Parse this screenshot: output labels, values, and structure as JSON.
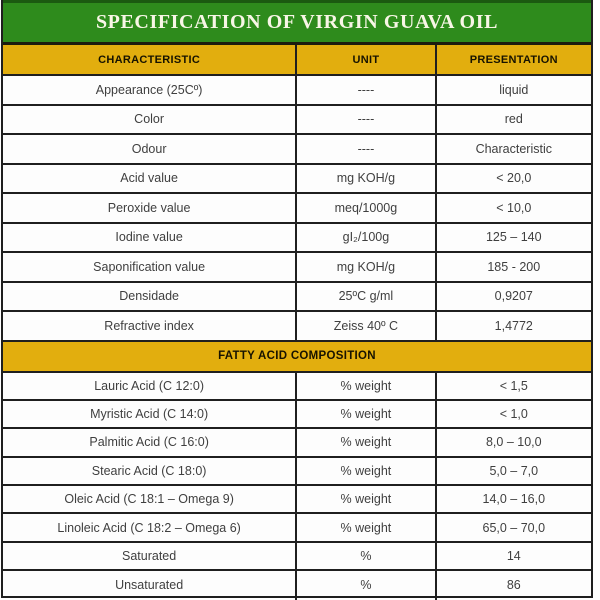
{
  "colors": {
    "green": "#2e8b1c",
    "green_dark": "#1b5a10",
    "gold": "#e2ae0e",
    "border": "#1f1f1f",
    "body_text": "#3f3f3f",
    "header_text": "#171300",
    "title_text": "#f8f6e6"
  },
  "title": "SPECIFICATION OF VIRGIN GUAVA OIL",
  "columns": {
    "characteristic": "CHARACTERISTIC",
    "unit": "UNIT",
    "presentation": "PRESENTATION"
  },
  "general_rows": [
    {
      "characteristic": "Appearance (25Cº)",
      "unit": "----",
      "presentation": "liquid"
    },
    {
      "characteristic": "Color",
      "unit": "----",
      "presentation": "red"
    },
    {
      "characteristic": "Odour",
      "unit": "----",
      "presentation": "Characteristic"
    },
    {
      "characteristic": "Acid value",
      "unit": "mg KOH/g",
      "presentation": "< 20,0"
    },
    {
      "characteristic": "Peroxide value",
      "unit": "meq/1000g",
      "presentation": "< 10,0"
    },
    {
      "characteristic": "Iodine value",
      "unit": "gI₂/100g",
      "presentation": "125 – 140"
    },
    {
      "characteristic": "Saponification value",
      "unit": "mg KOH/g",
      "presentation": "185 - 200"
    },
    {
      "characteristic": "Densidade",
      "unit": "25ºC g/ml",
      "presentation": "0,9207"
    },
    {
      "characteristic": "Refractive index",
      "unit": "Zeiss 40º C",
      "presentation": "1,4772"
    }
  ],
  "section_header": "FATTY ACID COMPOSITION",
  "fatty_rows": [
    {
      "characteristic": "Lauric Acid (C 12:0)",
      "unit": "% weight",
      "presentation": "< 1,5"
    },
    {
      "characteristic": "Myristic Acid (C 14:0)",
      "unit": "% weight",
      "presentation": "< 1,0"
    },
    {
      "characteristic": "Palmitic Acid (C 16:0)",
      "unit": "% weight",
      "presentation": "8,0 – 10,0"
    },
    {
      "characteristic": "Stearic Acid (C 18:0)",
      "unit": "% weight",
      "presentation": "5,0 – 7,0"
    },
    {
      "characteristic": "Oleic Acid (C 18:1 – Omega 9)",
      "unit": "% weight",
      "presentation": "14,0 – 16,0"
    },
    {
      "characteristic": "Linoleic Acid (C 18:2 – Omega 6)",
      "unit": "% weight",
      "presentation": "65,0 – 70,0"
    },
    {
      "characteristic": "Saturated",
      "unit": "%",
      "presentation": "14"
    },
    {
      "characteristic": "Unsaturated",
      "unit": "%",
      "presentation": "86"
    }
  ]
}
